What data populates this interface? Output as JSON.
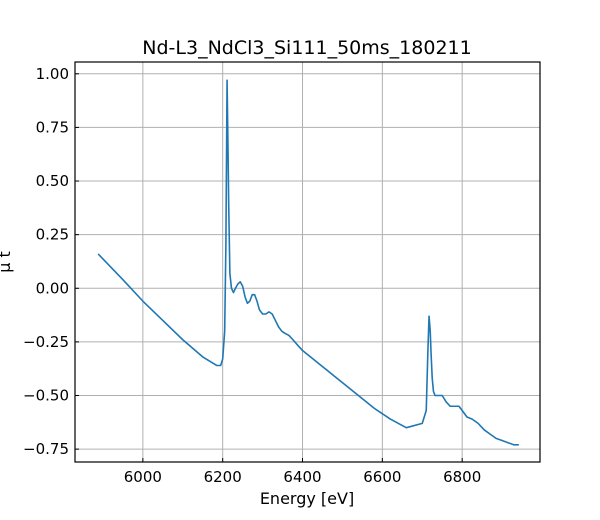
{
  "chart_data": {
    "type": "line",
    "title": "Nd-L3_NdCl3_Si111_50ms_180211",
    "xlabel": "Energy [eV]",
    "ylabel": "μ t",
    "xlim": [
      5830,
      6995
    ],
    "ylim": [
      -0.81,
      1.055
    ],
    "xticks": [
      6000,
      6200,
      6400,
      6600,
      6800
    ],
    "yticks": [
      -0.75,
      -0.5,
      -0.25,
      0.0,
      0.25,
      0.5,
      0.75,
      1.0
    ],
    "xtick_labels": [
      "6000",
      "6200",
      "6400",
      "6600",
      "6800"
    ],
    "ytick_labels": [
      "−0.75",
      "−0.50",
      "−0.25",
      "0.00",
      "0.25",
      "0.50",
      "0.75",
      "1.00"
    ],
    "grid": true,
    "series": [
      {
        "color": "#1f77b4",
        "x": [
          5888,
          5950,
          6000,
          6050,
          6100,
          6150,
          6185,
          6195,
          6200,
          6205,
          6208,
          6211,
          6213,
          6215,
          6218,
          6222,
          6227,
          6232,
          6238,
          6244,
          6250,
          6256,
          6262,
          6268,
          6274,
          6280,
          6286,
          6292,
          6300,
          6308,
          6316,
          6324,
          6332,
          6340,
          6348,
          6356,
          6366,
          6376,
          6390,
          6400,
          6420,
          6440,
          6460,
          6480,
          6500,
          6540,
          6580,
          6620,
          6660,
          6700,
          6710,
          6714,
          6717,
          6720,
          6722,
          6725,
          6728,
          6732,
          6740,
          6750,
          6760,
          6770,
          6780,
          6792,
          6800,
          6812,
          6825,
          6840,
          6855,
          6870,
          6885,
          6900,
          6915,
          6930,
          6942
        ],
        "y": [
          0.16,
          0.04,
          -0.06,
          -0.15,
          -0.24,
          -0.32,
          -0.36,
          -0.36,
          -0.33,
          -0.2,
          0.2,
          0.97,
          0.7,
          0.4,
          0.07,
          0.0,
          -0.02,
          0.0,
          0.02,
          0.03,
          0.01,
          -0.04,
          -0.07,
          -0.06,
          -0.03,
          -0.03,
          -0.06,
          -0.1,
          -0.12,
          -0.12,
          -0.11,
          -0.12,
          -0.15,
          -0.18,
          -0.2,
          -0.21,
          -0.22,
          -0.24,
          -0.27,
          -0.29,
          -0.32,
          -0.35,
          -0.38,
          -0.41,
          -0.44,
          -0.5,
          -0.56,
          -0.61,
          -0.65,
          -0.63,
          -0.57,
          -0.3,
          -0.13,
          -0.2,
          -0.3,
          -0.42,
          -0.48,
          -0.5,
          -0.5,
          -0.5,
          -0.53,
          -0.55,
          -0.55,
          -0.55,
          -0.57,
          -0.6,
          -0.61,
          -0.63,
          -0.66,
          -0.68,
          -0.7,
          -0.71,
          -0.72,
          -0.73,
          -0.73
        ]
      }
    ]
  }
}
